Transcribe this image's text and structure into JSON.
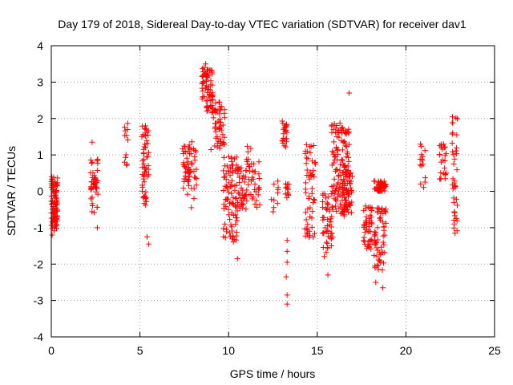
{
  "chart_data": {
    "type": "scatter",
    "title": "Day 179 of 2018, Sidereal Day-to-day VTEC variation (SDTVAR) for receiver dav1",
    "xlabel": "GPS time / hours",
    "ylabel": "SDTVAR / TECUs",
    "xlim": [
      0,
      25
    ],
    "ylim": [
      -4,
      4
    ],
    "x_ticks": [
      "0",
      "5",
      "10",
      "15",
      "20",
      "25"
    ],
    "y_ticks": [
      "-4",
      "-3",
      "-2",
      "-1",
      "0",
      "1",
      "2",
      "3",
      "4"
    ],
    "grid": true,
    "marker": "+",
    "marker_color": "#ff0000",
    "series": [
      {
        "name": "dav1",
        "clusters": [
          {
            "x": [
              0.0,
              0.35
            ],
            "y": [
              -1.1,
              0.4
            ],
            "n": 90
          },
          {
            "x": [
              2.2,
              2.65
            ],
            "y": [
              -0.6,
              0.9
            ],
            "n": 45
          },
          {
            "x": [
              4.1,
              4.35
            ],
            "y": [
              0.7,
              1.9
            ],
            "n": 12
          },
          {
            "x": [
              5.1,
              5.5
            ],
            "y": [
              -0.4,
              1.9
            ],
            "n": 55
          },
          {
            "x": [
              7.4,
              8.2
            ],
            "y": [
              -0.2,
              1.4
            ],
            "n": 60
          },
          {
            "x": [
              8.5,
              9.1
            ],
            "y": [
              2.2,
              3.4
            ],
            "n": 70
          },
          {
            "x": [
              9.0,
              9.8
            ],
            "y": [
              1.1,
              2.5
            ],
            "n": 55
          },
          {
            "x": [
              9.7,
              10.5
            ],
            "y": [
              -1.4,
              1.0
            ],
            "n": 90
          },
          {
            "x": [
              10.4,
              11.0
            ],
            "y": [
              -0.5,
              0.7
            ],
            "n": 40
          },
          {
            "x": [
              11.0,
              11.8
            ],
            "y": [
              -0.5,
              1.3
            ],
            "n": 40
          },
          {
            "x": [
              12.4,
              12.8
            ],
            "y": [
              -0.6,
              0.3
            ],
            "n": 10
          },
          {
            "x": [
              13.0,
              13.3
            ],
            "y": [
              1.2,
              2.0
            ],
            "n": 22
          },
          {
            "x": [
              13.2,
              13.4
            ],
            "y": [
              -0.2,
              0.3
            ],
            "n": 12
          },
          {
            "x": [
              14.3,
              14.9
            ],
            "y": [
              -1.3,
              1.3
            ],
            "n": 55
          },
          {
            "x": [
              15.3,
              15.9
            ],
            "y": [
              -1.8,
              0.0
            ],
            "n": 50
          },
          {
            "x": [
              15.8,
              16.8
            ],
            "y": [
              -0.7,
              1.9
            ],
            "n": 120
          },
          {
            "x": [
              16.4,
              17.0
            ],
            "y": [
              -0.6,
              0.6
            ],
            "n": 60
          },
          {
            "x": [
              17.6,
              18.1
            ],
            "y": [
              -1.6,
              -0.4
            ],
            "n": 45
          },
          {
            "x": [
              18.2,
              18.9
            ],
            "y": [
              0.0,
              0.3
            ],
            "n": 50
          },
          {
            "x": [
              18.2,
              18.9
            ],
            "y": [
              -2.2,
              -0.4
            ],
            "n": 60
          },
          {
            "x": [
              20.8,
              21.1
            ],
            "y": [
              0.0,
              1.4
            ],
            "n": 15
          },
          {
            "x": [
              21.9,
              22.3
            ],
            "y": [
              0.3,
              1.4
            ],
            "n": 25
          },
          {
            "x": [
              22.6,
              22.9
            ],
            "y": [
              -1.2,
              2.1
            ],
            "n": 40
          }
        ],
        "outliers": [
          {
            "x": 0.05,
            "y": -1.2
          },
          {
            "x": 2.6,
            "y": -1.0
          },
          {
            "x": 2.3,
            "y": 1.35
          },
          {
            "x": 5.4,
            "y": -1.25
          },
          {
            "x": 5.5,
            "y": -1.45
          },
          {
            "x": 7.9,
            "y": -0.45
          },
          {
            "x": 10.5,
            "y": -1.85
          },
          {
            "x": 13.3,
            "y": -1.35
          },
          {
            "x": 13.3,
            "y": -1.65
          },
          {
            "x": 13.3,
            "y": -1.95
          },
          {
            "x": 13.25,
            "y": -2.35
          },
          {
            "x": 13.3,
            "y": -2.85
          },
          {
            "x": 13.3,
            "y": -3.1
          },
          {
            "x": 15.6,
            "y": -2.3
          },
          {
            "x": 16.8,
            "y": 2.7
          },
          {
            "x": 18.3,
            "y": -2.5
          },
          {
            "x": 18.7,
            "y": -2.65
          },
          {
            "x": 8.7,
            "y": 3.5
          }
        ]
      }
    ]
  }
}
